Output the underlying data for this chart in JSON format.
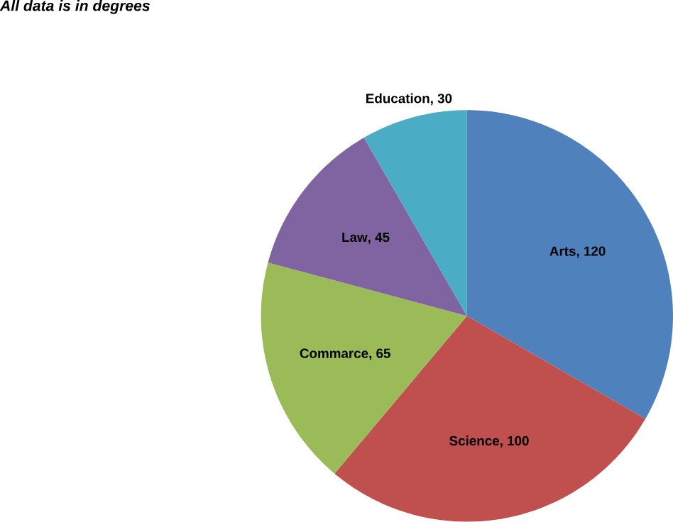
{
  "chart_data": {
    "type": "pie",
    "title": "All data is in degrees",
    "categories": [
      "Arts",
      "Science",
      "Commarce",
      "Law",
      "Education"
    ],
    "values": [
      120,
      100,
      65,
      45,
      30
    ],
    "colors": [
      "#4f81bd",
      "#c0504d",
      "#9bbb59",
      "#8064a2",
      "#4bacc6"
    ],
    "value_labels": [
      ", 120",
      ", 100",
      ", 65",
      ", 45",
      ", 30"
    ]
  }
}
